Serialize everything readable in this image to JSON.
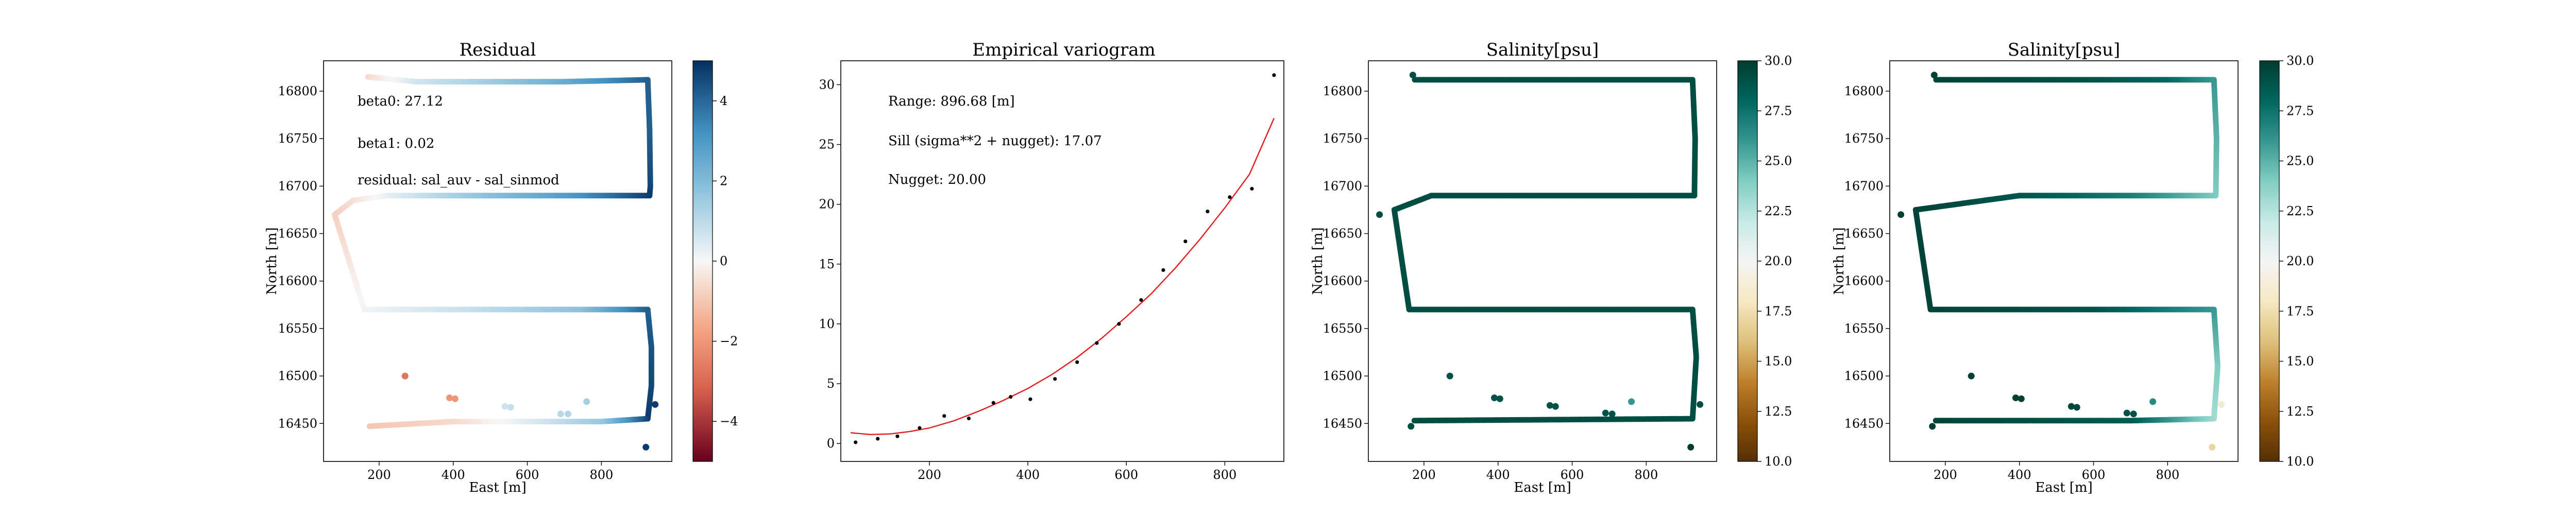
{
  "panels": [
    {
      "id": "residual",
      "title": "Residual",
      "xlabel": "East [m]",
      "ylabel": "North [m]",
      "xticks": [
        200,
        400,
        600,
        800
      ],
      "yticks": [
        16450,
        16500,
        16550,
        16600,
        16650,
        16700,
        16750,
        16800
      ],
      "xlim": [
        50,
        990
      ],
      "ylim": [
        16410,
        16832
      ],
      "annotations": [
        "beta0: 27.12",
        "beta1: 0.02",
        "residual: sal_auv - sal_sinmod"
      ],
      "colorbar": {
        "ticks": [
          -4,
          -2,
          0,
          2,
          4
        ],
        "range": [
          -5,
          5
        ],
        "colormap": "RdBu",
        "colors": [
          "#67001f",
          "#d6604d",
          "#f4a582",
          "#f7f7f7",
          "#92c5de",
          "#4393c3",
          "#053061"
        ]
      }
    },
    {
      "id": "salinity1",
      "title": "Salinity[psu]",
      "xlabel": "East [m]",
      "ylabel": "North [m]",
      "xticks": [
        200,
        400,
        600,
        800
      ],
      "yticks": [
        16450,
        16500,
        16550,
        16600,
        16650,
        16700,
        16750,
        16800
      ],
      "xlim": [
        50,
        990
      ],
      "ylim": [
        16410,
        16832
      ],
      "colorbar": {
        "ticks": [
          "10.0",
          "12.5",
          "15.0",
          "17.5",
          "20.0",
          "22.5",
          "25.0",
          "27.5",
          "30.0"
        ],
        "range": [
          10,
          30
        ],
        "colormap": "BrBG",
        "colors": [
          "#543005",
          "#8c510a",
          "#bf812d",
          "#dfc27d",
          "#f6e8c3",
          "#f5f5f5",
          "#c7eae5",
          "#80cdc1",
          "#35978f",
          "#01665e",
          "#003c30"
        ]
      }
    },
    {
      "id": "salinity2",
      "title": "Salinity[psu]",
      "xlabel": "East [m]",
      "ylabel": "North [m]",
      "xticks": [
        200,
        400,
        600,
        800
      ],
      "yticks": [
        16450,
        16500,
        16550,
        16600,
        16650,
        16700,
        16750,
        16800
      ],
      "xlim": [
        50,
        990
      ],
      "ylim": [
        16410,
        16832
      ],
      "colorbar": {
        "ticks": [
          "10.0",
          "12.5",
          "15.0",
          "17.5",
          "20.0",
          "22.5",
          "25.0",
          "27.5",
          "30.0"
        ],
        "range": [
          10,
          30
        ],
        "colormap": "BrBG",
        "colors": [
          "#543005",
          "#8c510a",
          "#bf812d",
          "#dfc27d",
          "#f6e8c3",
          "#f5f5f5",
          "#c7eae5",
          "#80cdc1",
          "#35978f",
          "#01665e",
          "#003c30"
        ]
      }
    }
  ],
  "variogram": {
    "title": "Empirical variogram",
    "xticks": [
      200,
      400,
      600,
      800
    ],
    "yticks": [
      0,
      5,
      10,
      15,
      20,
      25,
      30
    ],
    "xlim": [
      20,
      920
    ],
    "ylim": [
      -1.5,
      32
    ],
    "annotations": [
      "Range: 896.68 [m]",
      "Sill (sigma**2 + nugget): 17.07",
      "Nugget: 20.00"
    ]
  },
  "chart_data": [
    {
      "type": "scatter",
      "title": "Residual",
      "xlabel": "East [m]",
      "ylabel": "North [m]",
      "xlim": [
        50,
        990
      ],
      "ylim": [
        16410,
        16832
      ],
      "colorbar_range": [
        -5,
        5
      ],
      "track": [
        {
          "x": 170,
          "y": 16815,
          "v": -0.6
        },
        {
          "x": 300,
          "y": 16810,
          "v": 0.6
        },
        {
          "x": 500,
          "y": 16810,
          "v": 1.4
        },
        {
          "x": 700,
          "y": 16810,
          "v": 2.5
        },
        {
          "x": 925,
          "y": 16812,
          "v": 4.2
        },
        {
          "x": 930,
          "y": 16760,
          "v": 4.2
        },
        {
          "x": 932,
          "y": 16700,
          "v": 4.6
        },
        {
          "x": 930,
          "y": 16690,
          "v": 4.8
        },
        {
          "x": 700,
          "y": 16690,
          "v": 3.0
        },
        {
          "x": 450,
          "y": 16690,
          "v": 1.6
        },
        {
          "x": 220,
          "y": 16690,
          "v": 0.3
        },
        {
          "x": 130,
          "y": 16685,
          "v": -0.4
        },
        {
          "x": 80,
          "y": 16670,
          "v": -0.8
        },
        {
          "x": 160,
          "y": 16570,
          "v": 0.1
        },
        {
          "x": 450,
          "y": 16570,
          "v": 0.8
        },
        {
          "x": 750,
          "y": 16570,
          "v": 1.8
        },
        {
          "x": 925,
          "y": 16570,
          "v": 4.2
        },
        {
          "x": 935,
          "y": 16530,
          "v": 4.4
        },
        {
          "x": 935,
          "y": 16490,
          "v": 4.6
        },
        {
          "x": 925,
          "y": 16455,
          "v": 4.8
        },
        {
          "x": 800,
          "y": 16452,
          "v": 1.6
        },
        {
          "x": 600,
          "y": 16452,
          "v": 0.4
        },
        {
          "x": 400,
          "y": 16452,
          "v": -0.6
        },
        {
          "x": 170,
          "y": 16447,
          "v": -1.0
        }
      ],
      "points": [
        {
          "x": 270,
          "y": 16500,
          "v": -2.8
        },
        {
          "x": 390,
          "y": 16477,
          "v": -2.0
        },
        {
          "x": 405,
          "y": 16476,
          "v": -2.0
        },
        {
          "x": 540,
          "y": 16468,
          "v": 0.7
        },
        {
          "x": 555,
          "y": 16467,
          "v": 0.8
        },
        {
          "x": 690,
          "y": 16460,
          "v": 1.0
        },
        {
          "x": 710,
          "y": 16460,
          "v": 1.1
        },
        {
          "x": 760,
          "y": 16473,
          "v": 1.3
        },
        {
          "x": 945,
          "y": 16470,
          "v": 4.8
        },
        {
          "x": 920,
          "y": 16425,
          "v": 4.8
        }
      ]
    },
    {
      "type": "scatter",
      "title": "Empirical variogram",
      "x": [
        50,
        95,
        135,
        180,
        230,
        280,
        330,
        365,
        405,
        455,
        500,
        540,
        585,
        630,
        675,
        720,
        765,
        810,
        855,
        900
      ],
      "y": [
        0.1,
        0.4,
        0.6,
        1.3,
        2.3,
        2.1,
        3.4,
        3.9,
        3.7,
        5.4,
        6.8,
        8.4,
        10.0,
        12.0,
        14.5,
        16.9,
        19.4,
        20.6,
        21.3,
        30.8
      ],
      "fit": {
        "x": [
          40,
          80,
          120,
          160,
          200,
          250,
          300,
          350,
          400,
          450,
          500,
          550,
          600,
          650,
          700,
          750,
          800,
          850,
          900
        ],
        "y": [
          0.9,
          0.75,
          0.8,
          1.0,
          1.3,
          1.9,
          2.7,
          3.6,
          4.6,
          5.8,
          7.2,
          8.8,
          10.6,
          12.5,
          14.7,
          17.1,
          19.7,
          22.5,
          27.2
        ]
      },
      "xlim": [
        20,
        920
      ],
      "ylim": [
        -1.5,
        32
      ]
    },
    {
      "type": "scatter",
      "title": "Salinity[psu]",
      "xlabel": "East [m]",
      "ylabel": "North [m]",
      "xlim": [
        50,
        990
      ],
      "ylim": [
        16410,
        16832
      ],
      "colorbar_range": [
        10,
        30
      ],
      "track": [
        {
          "x": 175,
          "y": 16812,
          "v": 29.2
        },
        {
          "x": 925,
          "y": 16812,
          "v": 29.2
        },
        {
          "x": 932,
          "y": 16750,
          "v": 29.2
        },
        {
          "x": 930,
          "y": 16690,
          "v": 29.2
        },
        {
          "x": 220,
          "y": 16690,
          "v": 29.2
        },
        {
          "x": 120,
          "y": 16675,
          "v": 29.2
        },
        {
          "x": 160,
          "y": 16570,
          "v": 29.2
        },
        {
          "x": 925,
          "y": 16570,
          "v": 29.2
        },
        {
          "x": 935,
          "y": 16520,
          "v": 29.2
        },
        {
          "x": 925,
          "y": 16455,
          "v": 29.2
        },
        {
          "x": 170,
          "y": 16453,
          "v": 29.2
        }
      ],
      "points": [
        {
          "x": 170,
          "y": 16817,
          "v": 29.2
        },
        {
          "x": 80,
          "y": 16670,
          "v": 29.2
        },
        {
          "x": 165,
          "y": 16447,
          "v": 29.2
        },
        {
          "x": 270,
          "y": 16500,
          "v": 29.0
        },
        {
          "x": 390,
          "y": 16477,
          "v": 29.0
        },
        {
          "x": 405,
          "y": 16476,
          "v": 29.0
        },
        {
          "x": 540,
          "y": 16469,
          "v": 29.0
        },
        {
          "x": 555,
          "y": 16468,
          "v": 29.0
        },
        {
          "x": 690,
          "y": 16461,
          "v": 29.0
        },
        {
          "x": 708,
          "y": 16460,
          "v": 29.0
        },
        {
          "x": 760,
          "y": 16473,
          "v": 26.0
        },
        {
          "x": 945,
          "y": 16470,
          "v": 29.2
        },
        {
          "x": 920,
          "y": 16425,
          "v": 30.0
        }
      ]
    },
    {
      "type": "scatter",
      "title": "Salinity[psu]",
      "xlabel": "East [m]",
      "ylabel": "North [m]",
      "xlim": [
        50,
        990
      ],
      "ylim": [
        16410,
        16832
      ],
      "colorbar_range": [
        10,
        30
      ],
      "track": [
        {
          "x": 175,
          "y": 16812,
          "v": 29.6
        },
        {
          "x": 600,
          "y": 16812,
          "v": 29.0
        },
        {
          "x": 800,
          "y": 16812,
          "v": 28.0
        },
        {
          "x": 925,
          "y": 16812,
          "v": 26.0
        },
        {
          "x": 932,
          "y": 16750,
          "v": 25.0
        },
        {
          "x": 930,
          "y": 16690,
          "v": 24.0
        },
        {
          "x": 700,
          "y": 16690,
          "v": 27.0
        },
        {
          "x": 400,
          "y": 16690,
          "v": 28.8
        },
        {
          "x": 120,
          "y": 16675,
          "v": 29.6
        },
        {
          "x": 160,
          "y": 16570,
          "v": 29.6
        },
        {
          "x": 600,
          "y": 16570,
          "v": 29.0
        },
        {
          "x": 925,
          "y": 16570,
          "v": 26.0
        },
        {
          "x": 935,
          "y": 16510,
          "v": 24.0
        },
        {
          "x": 925,
          "y": 16455,
          "v": 23.0
        },
        {
          "x": 700,
          "y": 16453,
          "v": 28.5
        },
        {
          "x": 170,
          "y": 16453,
          "v": 29.6
        }
      ],
      "points": [
        {
          "x": 170,
          "y": 16817,
          "v": 29.8
        },
        {
          "x": 80,
          "y": 16670,
          "v": 29.8
        },
        {
          "x": 165,
          "y": 16447,
          "v": 29.8
        },
        {
          "x": 270,
          "y": 16500,
          "v": 29.8
        },
        {
          "x": 390,
          "y": 16477,
          "v": 29.8
        },
        {
          "x": 405,
          "y": 16476,
          "v": 29.8
        },
        {
          "x": 540,
          "y": 16468,
          "v": 29.5
        },
        {
          "x": 555,
          "y": 16467,
          "v": 29.5
        },
        {
          "x": 690,
          "y": 16461,
          "v": 29.0
        },
        {
          "x": 708,
          "y": 16460,
          "v": 29.0
        },
        {
          "x": 760,
          "y": 16473,
          "v": 26.5
        },
        {
          "x": 945,
          "y": 16470,
          "v": 18.5
        },
        {
          "x": 920,
          "y": 16425,
          "v": 17.0
        }
      ]
    }
  ]
}
